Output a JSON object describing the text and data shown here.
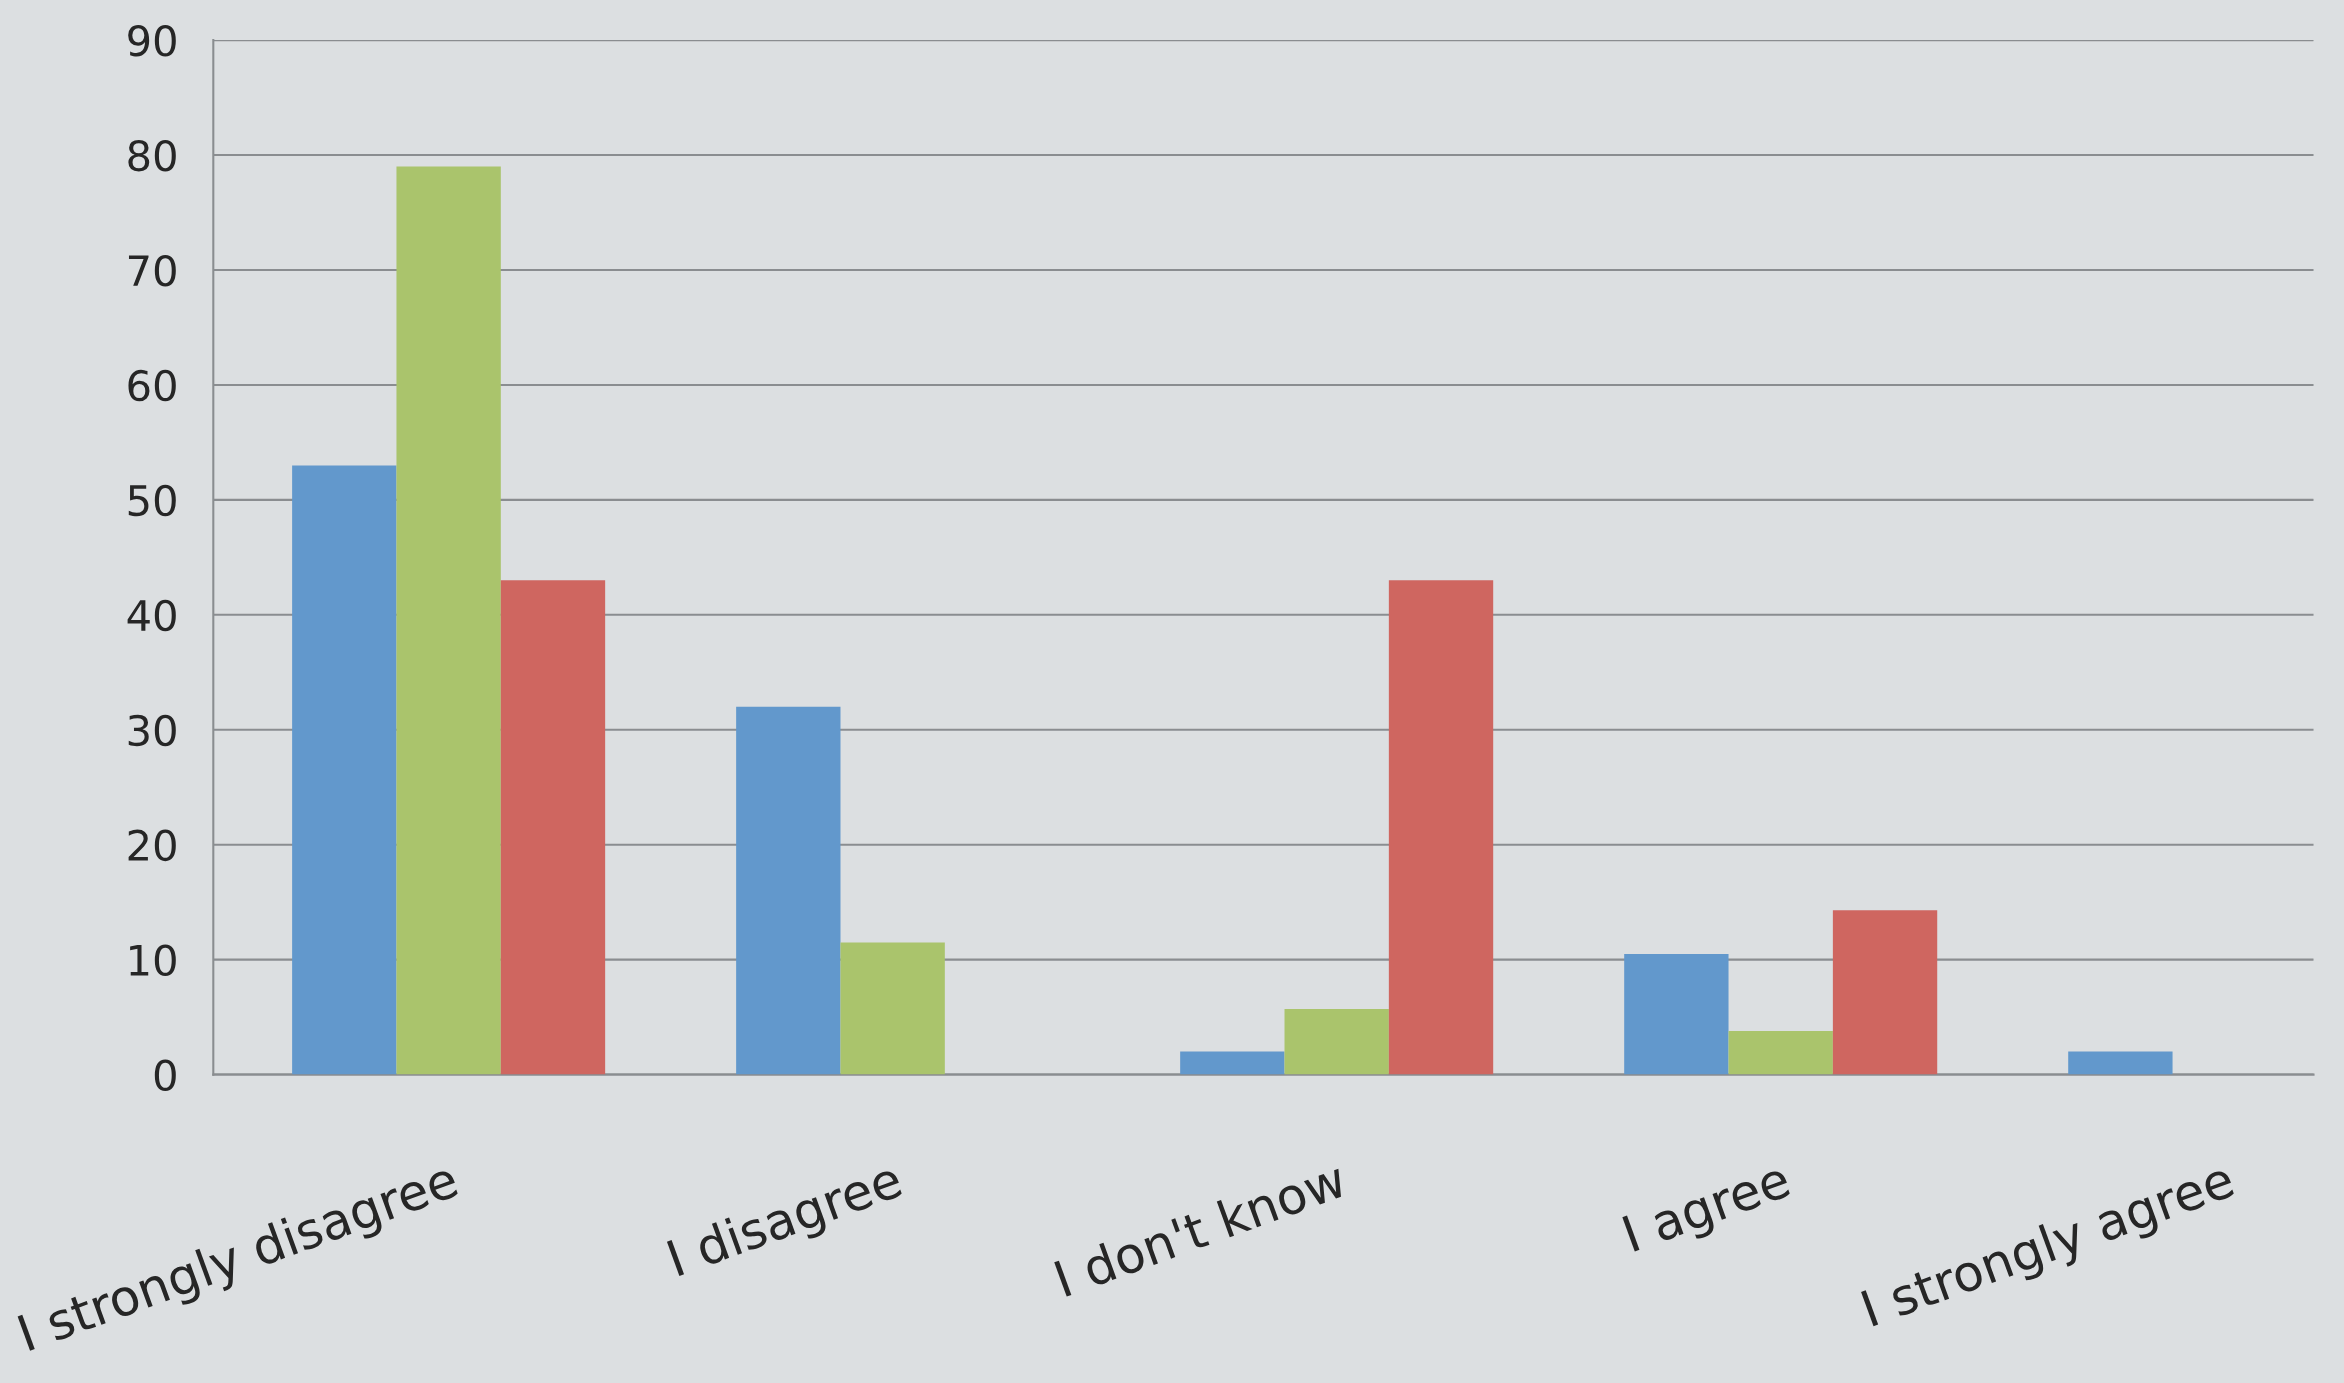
{
  "chart_data": {
    "type": "bar",
    "categories": [
      "I strongly disagree",
      "I disagree",
      "I don't know",
      "I agree",
      "I strongly agree"
    ],
    "series": [
      {
        "color": "#6298cc",
        "values": [
          53,
          32,
          2,
          10.5,
          2
        ]
      },
      {
        "color": "#aac46c",
        "values": [
          79,
          11.5,
          5.7,
          3.8,
          null
        ]
      },
      {
        "color": "#cf6660",
        "values": [
          43,
          null,
          43,
          14.3,
          null
        ]
      }
    ],
    "ylim": [
      0,
      90
    ],
    "yticks": [
      0,
      10,
      20,
      30,
      40,
      50,
      60,
      70,
      80,
      90
    ],
    "grid": "y"
  }
}
